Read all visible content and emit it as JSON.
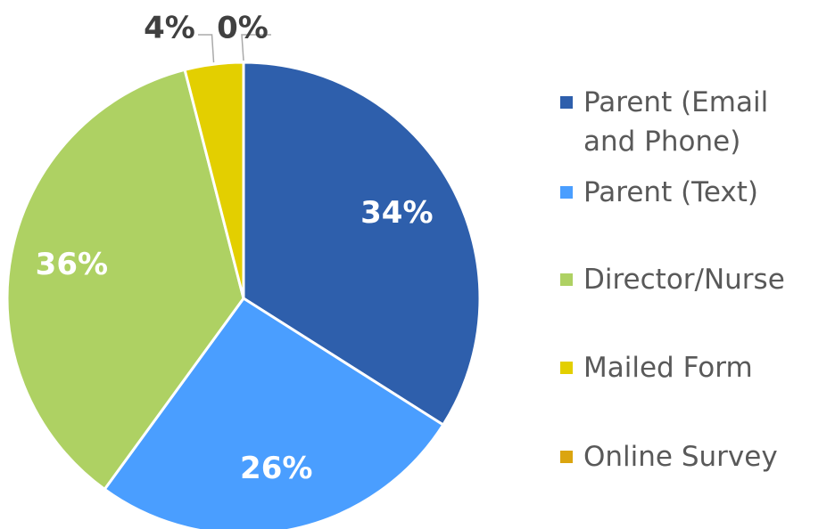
{
  "chart_data": {
    "type": "pie",
    "categories": [
      "Parent (Email and Phone)",
      "Parent (Text)",
      "Director/Nurse",
      "Mailed Form",
      "Online Survey"
    ],
    "values": [
      34,
      26,
      36,
      4,
      0
    ],
    "value_labels": [
      "34%",
      "26%",
      "36%",
      "4%",
      "0%"
    ],
    "colors": [
      "#2e5fac",
      "#4a9eff",
      "#aed163",
      "#e3cf00",
      "#dba50f"
    ],
    "legend": "right"
  }
}
